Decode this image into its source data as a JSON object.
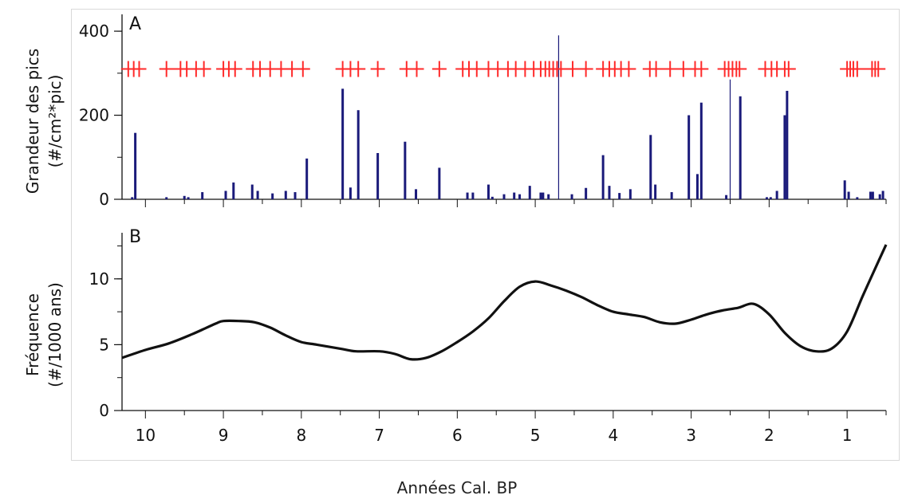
{
  "xlabel": "Années Cal. BP",
  "chart_data": [
    {
      "panel": "A",
      "type": "bar",
      "ylabel_line1": "Grandeur des pics",
      "ylabel_line2": "(#/cm²*pic)",
      "xlim": [
        10.3,
        0.5
      ],
      "ylim": [
        0,
        440
      ],
      "yticks": [
        0,
        200,
        400
      ],
      "bar_color": "#1a1a7a",
      "marker_color": "#ff2a2a",
      "marker_y": 310,
      "bars": [
        {
          "x": 10.17,
          "y": 5
        },
        {
          "x": 10.13,
          "y": 158
        },
        {
          "x": 9.73,
          "y": 5
        },
        {
          "x": 9.5,
          "y": 8
        },
        {
          "x": 9.45,
          "y": 5
        },
        {
          "x": 9.27,
          "y": 17
        },
        {
          "x": 8.97,
          "y": 20
        },
        {
          "x": 8.87,
          "y": 40
        },
        {
          "x": 8.63,
          "y": 35
        },
        {
          "x": 8.56,
          "y": 20
        },
        {
          "x": 8.37,
          "y": 14
        },
        {
          "x": 8.2,
          "y": 20
        },
        {
          "x": 8.08,
          "y": 17
        },
        {
          "x": 7.93,
          "y": 97
        },
        {
          "x": 7.47,
          "y": 263
        },
        {
          "x": 7.37,
          "y": 28
        },
        {
          "x": 7.27,
          "y": 212
        },
        {
          "x": 7.02,
          "y": 110
        },
        {
          "x": 6.67,
          "y": 137
        },
        {
          "x": 6.53,
          "y": 24
        },
        {
          "x": 6.23,
          "y": 75
        },
        {
          "x": 5.87,
          "y": 16
        },
        {
          "x": 5.8,
          "y": 16
        },
        {
          "x": 5.6,
          "y": 35
        },
        {
          "x": 5.55,
          "y": 6
        },
        {
          "x": 5.4,
          "y": 12
        },
        {
          "x": 5.27,
          "y": 16
        },
        {
          "x": 5.2,
          "y": 12
        },
        {
          "x": 5.07,
          "y": 32
        },
        {
          "x": 4.93,
          "y": 16
        },
        {
          "x": 4.9,
          "y": 16
        },
        {
          "x": 4.83,
          "y": 12
        },
        {
          "x": 4.7,
          "y": 390,
          "thin": true
        },
        {
          "x": 4.53,
          "y": 12
        },
        {
          "x": 4.35,
          "y": 27
        },
        {
          "x": 4.13,
          "y": 105
        },
        {
          "x": 4.05,
          "y": 32
        },
        {
          "x": 3.92,
          "y": 15
        },
        {
          "x": 3.78,
          "y": 24
        },
        {
          "x": 3.52,
          "y": 153
        },
        {
          "x": 3.46,
          "y": 35
        },
        {
          "x": 3.25,
          "y": 17
        },
        {
          "x": 3.03,
          "y": 200
        },
        {
          "x": 2.92,
          "y": 60
        },
        {
          "x": 2.87,
          "y": 230
        },
        {
          "x": 2.55,
          "y": 10
        },
        {
          "x": 2.5,
          "y": 285,
          "thin": true
        },
        {
          "x": 2.37,
          "y": 245
        },
        {
          "x": 2.03,
          "y": 5
        },
        {
          "x": 1.98,
          "y": 5
        },
        {
          "x": 1.9,
          "y": 20
        },
        {
          "x": 1.8,
          "y": 200
        },
        {
          "x": 1.77,
          "y": 258
        },
        {
          "x": 1.03,
          "y": 45
        },
        {
          "x": 0.98,
          "y": 18
        },
        {
          "x": 0.87,
          "y": 5
        },
        {
          "x": 0.7,
          "y": 18
        },
        {
          "x": 0.67,
          "y": 18
        },
        {
          "x": 0.58,
          "y": 12
        },
        {
          "x": 0.54,
          "y": 20
        }
      ],
      "markers": [
        10.22,
        10.15,
        10.08,
        9.73,
        9.55,
        9.47,
        9.35,
        9.25,
        9.0,
        8.93,
        8.85,
        8.62,
        8.53,
        8.4,
        8.26,
        8.12,
        7.98,
        7.47,
        7.37,
        7.27,
        7.02,
        6.65,
        6.52,
        6.23,
        5.93,
        5.85,
        5.75,
        5.6,
        5.48,
        5.35,
        5.25,
        5.13,
        5.02,
        4.93,
        4.87,
        4.82,
        4.77,
        4.72,
        4.67,
        4.52,
        4.35,
        4.13,
        4.05,
        3.98,
        3.9,
        3.8,
        3.53,
        3.45,
        3.27,
        3.1,
        2.95,
        2.87,
        2.57,
        2.52,
        2.47,
        2.42,
        2.38,
        2.05,
        1.97,
        1.9,
        1.8,
        1.75,
        1.0,
        0.96,
        0.92,
        0.87,
        0.68,
        0.64,
        0.6
      ]
    },
    {
      "panel": "B",
      "type": "line",
      "ylabel_line1": "Fréquence",
      "ylabel_line2": "(#/1000 ans)",
      "xlim": [
        10.3,
        0.5
      ],
      "ylim": [
        0,
        13.5
      ],
      "yticks": [
        0,
        5,
        10
      ],
      "line_color": "#111111",
      "x": [
        10.3,
        10.0,
        9.7,
        9.4,
        9.1,
        9.0,
        8.8,
        8.6,
        8.4,
        8.2,
        8.0,
        7.8,
        7.5,
        7.3,
        7.0,
        6.8,
        6.6,
        6.4,
        6.2,
        6.0,
        5.8,
        5.6,
        5.4,
        5.2,
        5.0,
        4.8,
        4.6,
        4.4,
        4.2,
        4.0,
        3.8,
        3.6,
        3.4,
        3.2,
        3.0,
        2.8,
        2.6,
        2.4,
        2.2,
        2.0,
        1.8,
        1.6,
        1.4,
        1.2,
        1.0,
        0.8,
        0.6,
        0.5
      ],
      "y": [
        4.0,
        4.6,
        5.1,
        5.8,
        6.6,
        6.8,
        6.8,
        6.7,
        6.3,
        5.7,
        5.2,
        5.0,
        4.7,
        4.5,
        4.5,
        4.3,
        3.9,
        4.0,
        4.5,
        5.2,
        6.0,
        7.0,
        8.3,
        9.4,
        9.8,
        9.5,
        9.1,
        8.6,
        8.0,
        7.5,
        7.3,
        7.1,
        6.7,
        6.6,
        6.9,
        7.3,
        7.6,
        7.8,
        8.1,
        7.3,
        5.9,
        4.9,
        4.5,
        4.7,
        6.0,
        8.7,
        11.3,
        12.6
      ]
    }
  ]
}
